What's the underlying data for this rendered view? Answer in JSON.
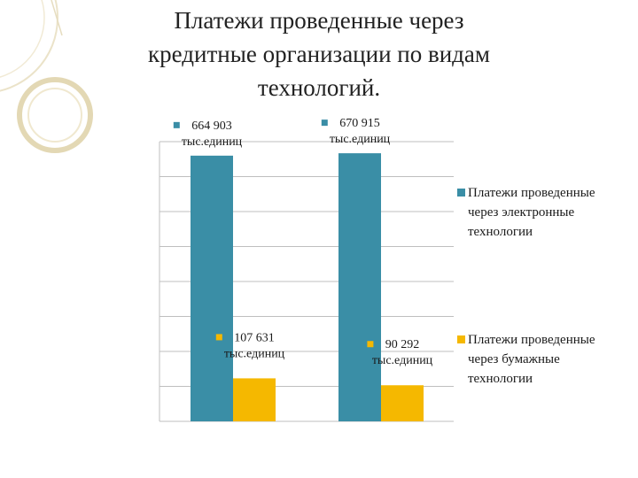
{
  "slide": {
    "title": "Платежи проведенные через кредитные организации по видам технологий.",
    "title_lines": [
      "Платежи проведенные через",
      "кредитные организации по видам",
      "технологий."
    ]
  },
  "chart_data": {
    "type": "bar",
    "title": "",
    "xlabel": "",
    "ylabel": "",
    "categories": [
      "",
      ""
    ],
    "ylim": [
      0,
      700000
    ],
    "grid": true,
    "legend_position": "right",
    "series": [
      {
        "name": "Платежи проведенные через электронные технологии",
        "name_lines": [
          "Платежи проведенные",
          "через электронные",
          "технологии"
        ],
        "color": "#3a8ea6",
        "values": [
          664903,
          670915
        ],
        "labels": [
          [
            "664 903",
            "тыс.единиц"
          ],
          [
            "670 915",
            "тыс.единиц"
          ]
        ]
      },
      {
        "name": "Платежи проведенные через бумажные технологии",
        "name_lines": [
          "Платежи проведенные",
          "через бумажные",
          "технологии"
        ],
        "color": "#f5b800",
        "values": [
          107631,
          90292
        ],
        "labels": [
          [
            "107 631",
            "тыс.единиц"
          ],
          [
            "90 292",
            "тыс.единиц"
          ]
        ]
      }
    ]
  }
}
